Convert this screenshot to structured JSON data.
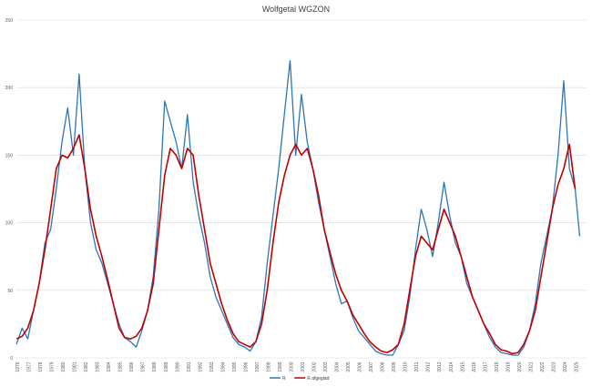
{
  "chart_data": {
    "type": "line",
    "title": "Wolfgetal WGZON",
    "xlabel": "",
    "ylabel": "",
    "ylim": [
      0,
      250
    ],
    "xlim": [
      1976,
      2026
    ],
    "y_ticks": [
      0,
      50,
      100,
      150,
      200,
      250
    ],
    "x_tick_labels": [
      "1976",
      "1977",
      "1978",
      "1979",
      "1980",
      "1981",
      "1982",
      "1983",
      "1984",
      "1985",
      "1986",
      "1987",
      "1988",
      "1989",
      "1990",
      "1991",
      "1992",
      "1993",
      "1994",
      "1995",
      "1996",
      "1997",
      "1998",
      "1999",
      "2000",
      "2001",
      "2002",
      "2003",
      "2004",
      "2005",
      "2006",
      "2007",
      "2008",
      "2009",
      "2010",
      "2011",
      "2012",
      "2013",
      "2014",
      "2015",
      "2016",
      "2017",
      "2018",
      "2019",
      "2020",
      "2021",
      "2022",
      "2023",
      "2024",
      "2025"
    ],
    "grid": "horizontal",
    "legend_position": "bottom",
    "series": [
      {
        "name": "R",
        "color": "#2e75b6",
        "x": [
          1976.0,
          1976.5,
          1977.0,
          1977.5,
          1978.0,
          1978.5,
          1979.0,
          1979.5,
          1980.0,
          1980.5,
          1981.0,
          1981.5,
          1982.0,
          1982.5,
          1983.0,
          1983.5,
          1984.0,
          1984.5,
          1985.0,
          1985.5,
          1986.0,
          1986.5,
          1987.0,
          1987.5,
          1988.0,
          1988.5,
          1989.0,
          1989.5,
          1990.0,
          1990.5,
          1991.0,
          1991.5,
          1992.0,
          1992.5,
          1993.0,
          1993.5,
          1994.0,
          1994.5,
          1995.0,
          1995.5,
          1996.0,
          1996.5,
          1997.0,
          1997.5,
          1998.0,
          1998.5,
          1999.0,
          1999.5,
          2000.0,
          2000.5,
          2001.0,
          2001.5,
          2002.0,
          2002.5,
          2003.0,
          2003.5,
          2004.0,
          2004.5,
          2005.0,
          2005.5,
          2006.0,
          2006.5,
          2007.0,
          2007.5,
          2008.0,
          2008.5,
          2009.0,
          2009.5,
          2010.0,
          2010.5,
          2011.0,
          2011.5,
          2012.0,
          2012.5,
          2013.0,
          2013.5,
          2014.0,
          2014.5,
          2015.0,
          2015.5,
          2016.0,
          2016.5,
          2017.0,
          2017.5,
          2018.0,
          2018.5,
          2019.0,
          2019.5,
          2020.0,
          2020.5,
          2021.0,
          2021.5,
          2022.0,
          2022.5,
          2023.0,
          2023.5,
          2024.0,
          2024.5,
          2025.0,
          2025.4
        ],
        "values": [
          10,
          22,
          14,
          35,
          55,
          85,
          95,
          125,
          160,
          185,
          150,
          210,
          140,
          100,
          80,
          70,
          55,
          40,
          25,
          15,
          12,
          8,
          20,
          35,
          60,
          110,
          190,
          175,
          160,
          140,
          180,
          130,
          105,
          85,
          60,
          45,
          35,
          25,
          15,
          10,
          8,
          5,
          12,
          30,
          70,
          105,
          140,
          180,
          220,
          150,
          195,
          160,
          140,
          115,
          95,
          75,
          55,
          40,
          42,
          30,
          20,
          15,
          10,
          5,
          3,
          2,
          2,
          10,
          20,
          45,
          80,
          110,
          95,
          75,
          100,
          130,
          105,
          85,
          75,
          55,
          45,
          35,
          25,
          15,
          8,
          4,
          3,
          2,
          2,
          8,
          20,
          40,
          70,
          90,
          110,
          150,
          205,
          140,
          125,
          90
        ]
      },
      {
        "name": "R afgeglad",
        "color": "#c00000",
        "x": [
          1976.0,
          1976.5,
          1977.0,
          1977.5,
          1978.0,
          1978.5,
          1979.0,
          1979.5,
          1980.0,
          1980.5,
          1981.0,
          1981.5,
          1982.0,
          1982.5,
          1983.0,
          1983.5,
          1984.0,
          1984.5,
          1985.0,
          1985.5,
          1986.0,
          1986.5,
          1987.0,
          1987.5,
          1988.0,
          1988.5,
          1989.0,
          1989.5,
          1990.0,
          1990.5,
          1991.0,
          1991.5,
          1992.0,
          1992.5,
          1993.0,
          1993.5,
          1994.0,
          1994.5,
          1995.0,
          1995.5,
          1996.0,
          1996.5,
          1997.0,
          1997.5,
          1998.0,
          1998.5,
          1999.0,
          1999.5,
          2000.0,
          2000.5,
          2001.0,
          2001.5,
          2002.0,
          2002.5,
          2003.0,
          2003.5,
          2004.0,
          2004.5,
          2005.0,
          2005.5,
          2006.0,
          2006.5,
          2007.0,
          2007.5,
          2008.0,
          2008.5,
          2009.0,
          2009.5,
          2010.0,
          2010.5,
          2011.0,
          2011.5,
          2012.0,
          2012.5,
          2013.0,
          2013.5,
          2014.0,
          2014.5,
          2015.0,
          2015.5,
          2016.0,
          2016.5,
          2017.0,
          2017.5,
          2018.0,
          2018.5,
          2019.0,
          2019.5,
          2020.0,
          2020.5,
          2021.0,
          2021.5,
          2022.0,
          2022.5,
          2023.0,
          2023.5,
          2024.0,
          2024.5,
          2025.0
        ],
        "values": [
          14,
          16,
          22,
          35,
          55,
          80,
          110,
          140,
          150,
          148,
          155,
          165,
          140,
          110,
          90,
          75,
          58,
          40,
          22,
          15,
          14,
          16,
          22,
          35,
          55,
          95,
          135,
          155,
          150,
          140,
          155,
          150,
          120,
          95,
          70,
          55,
          40,
          28,
          18,
          12,
          10,
          8,
          12,
          25,
          50,
          85,
          115,
          135,
          150,
          158,
          150,
          155,
          140,
          120,
          95,
          78,
          62,
          50,
          42,
          32,
          25,
          18,
          12,
          8,
          5,
          4,
          6,
          10,
          25,
          50,
          75,
          90,
          85,
          80,
          95,
          110,
          100,
          90,
          75,
          60,
          45,
          35,
          25,
          18,
          10,
          6,
          5,
          3,
          4,
          10,
          20,
          35,
          60,
          85,
          110,
          128,
          140,
          158,
          125
        ]
      }
    ]
  }
}
